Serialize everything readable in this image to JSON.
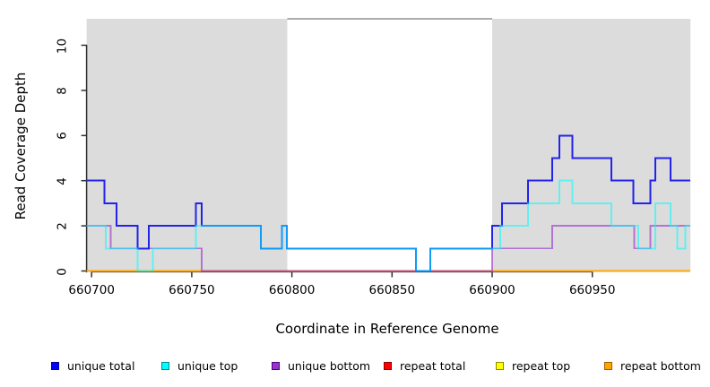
{
  "figure": {
    "xlabel": "Coordinate in Reference Genome",
    "ylabel": "Read Coverage Depth",
    "background_color": "#ffffff",
    "plot_area_color": "#ffffff",
    "axis_color": "#303030",
    "repeat_region_color": "#dcdcdc",
    "unique_region_top_line_color": "#909090"
  },
  "chart_data": {
    "type": "line",
    "subtype": "step-coverage",
    "title": "",
    "xlabel": "Coordinate in Reference Genome",
    "ylabel": "Read Coverage Depth",
    "xlim": [
      660697.5,
      660999
    ],
    "ylim": [
      0,
      11.2
    ],
    "x_ticks": [
      660700,
      660750,
      660800,
      660850,
      660900,
      660950
    ],
    "y_ticks": [
      0,
      2,
      4,
      6,
      8,
      10
    ],
    "grid": false,
    "legend_position": "bottom",
    "shaded_regions": [
      {
        "label": "repeat-region-left",
        "x0": 660697.5,
        "x1": 660797.7,
        "color": "#dcdcdc"
      },
      {
        "label": "repeat-region-right",
        "x0": 660900,
        "x1": 660999,
        "color": "#dcdcdc"
      }
    ],
    "gap_top_line": {
      "x0": 660797.7,
      "x1": 660900,
      "color": "#909090"
    },
    "series": [
      {
        "name": "repeat total",
        "color": "#e01030",
        "opacity": 1,
        "width": 1.4,
        "segments": [
          [
            660697.5,
            660999,
            0
          ]
        ]
      },
      {
        "name": "repeat top",
        "color": "#ffff00",
        "opacity": 1,
        "width": 1.4,
        "segments": [
          [
            660697.5,
            660999,
            0
          ]
        ]
      },
      {
        "name": "repeat bottom",
        "color": "#ffa500",
        "opacity": 1,
        "width": 2,
        "segments": [
          [
            660697.5,
            660999,
            0
          ]
        ]
      },
      {
        "name": "unique bottom",
        "color": "#9932cc",
        "opacity": 0.62,
        "width": 1.8,
        "segments": [
          [
            660697.5,
            660709.5,
            2
          ],
          [
            660709.5,
            660755,
            1
          ],
          [
            660755,
            660900,
            0
          ],
          [
            660900,
            660930,
            1
          ],
          [
            660930,
            660971,
            2
          ],
          [
            660971,
            660979,
            1
          ],
          [
            660979,
            660999,
            2
          ]
        ]
      },
      {
        "name": "unique total",
        "color": "#2323eb",
        "opacity": 1,
        "width": 2,
        "segments": [
          [
            660697.5,
            660706.5,
            4
          ],
          [
            660706.5,
            660712.5,
            3
          ],
          [
            660712.5,
            660723,
            2
          ],
          [
            660723,
            660728.5,
            1
          ],
          [
            660728.5,
            660752,
            2
          ],
          [
            660752,
            660755,
            3
          ],
          [
            660755,
            660784.5,
            2
          ],
          [
            660784.5,
            660795,
            1
          ],
          [
            660795,
            660797.5,
            2
          ],
          [
            660797.5,
            660862,
            1
          ],
          [
            660862,
            660869,
            0
          ],
          [
            660869,
            660900,
            1
          ],
          [
            660900,
            660905,
            2
          ],
          [
            660905,
            660918,
            3
          ],
          [
            660918,
            660930,
            4
          ],
          [
            660930,
            660933.5,
            5
          ],
          [
            660933.5,
            660940,
            6
          ],
          [
            660940,
            660959.5,
            5
          ],
          [
            660959.5,
            660970.5,
            4
          ],
          [
            660970.5,
            660979,
            3
          ],
          [
            660979,
            660981.5,
            4
          ],
          [
            660981.5,
            660989,
            5
          ],
          [
            660989,
            660999,
            4
          ]
        ]
      },
      {
        "name": "unique top",
        "color": "#00ffff",
        "opacity": 0.55,
        "width": 2,
        "segments": [
          [
            660697.5,
            660707,
            2
          ],
          [
            660707,
            660723,
            1
          ],
          [
            660723,
            660730.5,
            0
          ],
          [
            660730.5,
            660752,
            1
          ],
          [
            660752,
            660784.5,
            2
          ],
          [
            660784.5,
            660795,
            1
          ],
          [
            660795,
            660797.5,
            2
          ],
          [
            660797.5,
            660862,
            1
          ],
          [
            660862,
            660869,
            0
          ],
          [
            660869,
            660904,
            1
          ],
          [
            660904,
            660918,
            2
          ],
          [
            660918,
            660933.5,
            3
          ],
          [
            660933.5,
            660940,
            4
          ],
          [
            660940,
            660959.5,
            3
          ],
          [
            660959.5,
            660973,
            2
          ],
          [
            660973,
            660981.5,
            1
          ],
          [
            660981.5,
            660989,
            3
          ],
          [
            660989,
            660992.5,
            2
          ],
          [
            660992.5,
            660996.5,
            1
          ],
          [
            660996.5,
            660999,
            2
          ]
        ]
      }
    ]
  },
  "legend": {
    "items": [
      {
        "label": "unique total",
        "fill": "#0000ff",
        "border": "#000090"
      },
      {
        "label": "unique top",
        "fill": "#00ffff",
        "border": "#008b9b"
      },
      {
        "label": "unique bottom",
        "fill": "#9932cc",
        "border": "#4b0082"
      },
      {
        "label": "repeat total",
        "fill": "#ff0000",
        "border": "#900000"
      },
      {
        "label": "repeat top",
        "fill": "#ffff00",
        "border": "#8b8b00"
      },
      {
        "label": "repeat bottom",
        "fill": "#ffa500",
        "border": "#a55a00"
      }
    ]
  }
}
